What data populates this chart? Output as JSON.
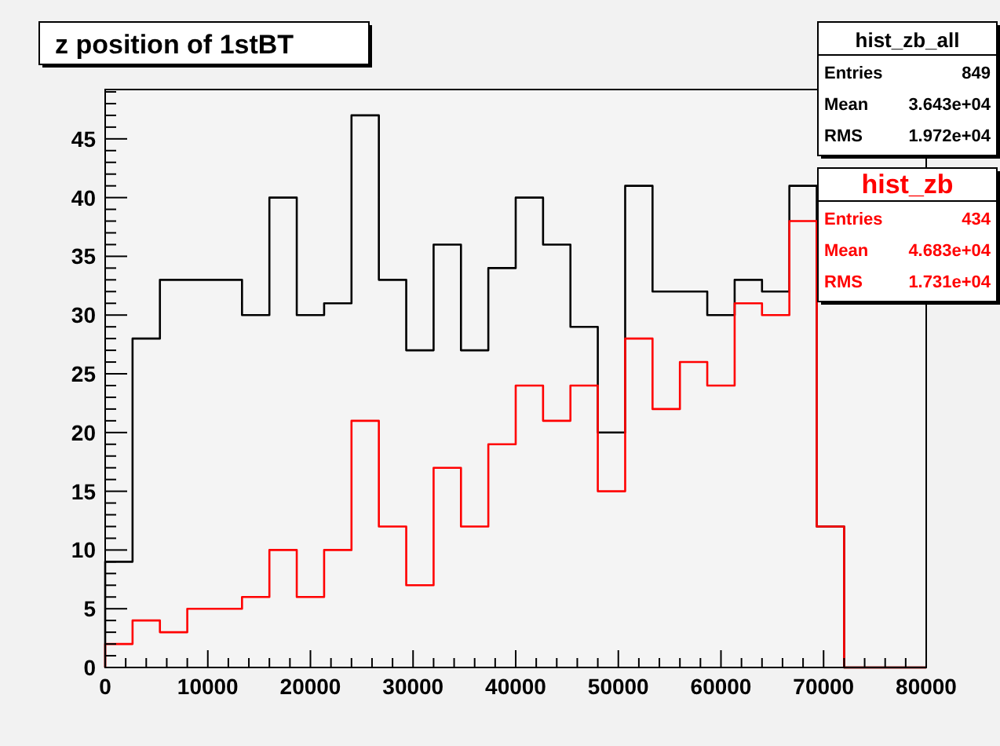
{
  "chart_data": {
    "type": "histogram",
    "title": "z position of 1stBT",
    "bins": [
      0,
      2666.67,
      5333.33,
      8000,
      10666.67,
      13333.33,
      16000,
      18666.67,
      21333.33,
      24000,
      26666.67,
      29333.33,
      32000,
      34666.67,
      37333.33,
      40000,
      42666.67,
      45333.33,
      48000,
      50666.67,
      53333.33,
      56000,
      58666.67,
      61333.33,
      64000,
      66666.67,
      69333.33,
      72000,
      74666.67,
      77333.33,
      80000
    ],
    "series": [
      {
        "name": "hist_zb_all",
        "color": "#000000",
        "values": [
          9,
          28,
          33,
          33,
          33,
          30,
          40,
          30,
          31,
          47,
          33,
          27,
          36,
          27,
          34,
          40,
          36,
          29,
          20,
          41,
          32,
          32,
          30,
          33,
          32,
          41,
          12,
          0,
          0,
          0
        ]
      },
      {
        "name": "hist_zb",
        "color": "#ff0000",
        "values": [
          2,
          4,
          3,
          5,
          5,
          6,
          10,
          6,
          10,
          21,
          12,
          7,
          17,
          12,
          19,
          24,
          21,
          24,
          15,
          28,
          22,
          26,
          24,
          31,
          30,
          38,
          12,
          0,
          0,
          0
        ]
      }
    ],
    "annotations": [
      "Entries 849",
      "Mean 3.643e+04",
      "RMS 1.972e+04",
      "Entries 434",
      "Mean 4.683e+04",
      "RMS 1.731e+04"
    ],
    "xlim": [
      0,
      80000
    ],
    "xticks": [
      0,
      {
        "value": 2000,
        "label": null
      },
      {
        "value": 4000,
        "label": null
      },
      {
        "value": 6000,
        "label": null
      },
      {
        "value": 8000,
        "label": null
      },
      10000,
      {
        "value": 12000,
        "label": null
      },
      {
        "value": 14000,
        "label": null
      },
      {
        "value": 16000,
        "label": null
      },
      {
        "value": 18000,
        "label": null
      },
      20000,
      {
        "value": 22000,
        "label": null
      },
      {
        "value": 24000,
        "label": null
      },
      {
        "value": 26000,
        "label": null
      },
      {
        "value": 28000,
        "label": null
      },
      30000,
      {
        "value": 32000,
        "label": null
      },
      {
        "value": 34000,
        "label": null
      },
      {
        "value": 36000,
        "label": null
      },
      {
        "value": 38000,
        "label": null
      },
      40000,
      {
        "value": 42000,
        "label": null
      },
      {
        "value": 44000,
        "label": null
      },
      {
        "value": 46000,
        "label": null
      },
      {
        "value": 48000,
        "label": null
      },
      50000,
      {
        "value": 52000,
        "label": null
      },
      {
        "value": 54000,
        "label": null
      },
      {
        "value": 56000,
        "label": null
      },
      {
        "value": 58000,
        "label": null
      },
      60000,
      {
        "value": 62000,
        "label": null
      },
      {
        "value": 64000,
        "label": null
      },
      {
        "value": 66000,
        "label": null
      },
      {
        "value": 68000,
        "label": null
      },
      70000,
      {
        "value": 72000,
        "label": null
      },
      {
        "value": 74000,
        "label": null
      },
      {
        "value": 76000,
        "label": null
      },
      {
        "value": 78000,
        "label": null
      },
      80000
    ],
    "ylim": [
      0,
      49.2
    ],
    "yticks": [
      0,
      {
        "value": 1,
        "label": null
      },
      {
        "value": 2,
        "label": null
      },
      {
        "value": 3,
        "label": null
      },
      {
        "value": 4,
        "label": null
      },
      5,
      {
        "value": 6,
        "label": null
      },
      {
        "value": 7,
        "label": null
      },
      {
        "value": 8,
        "label": null
      },
      {
        "value": 9,
        "label": null
      },
      10,
      {
        "value": 11,
        "label": null
      },
      {
        "value": 12,
        "label": null
      },
      {
        "value": 13,
        "label": null
      },
      {
        "value": 14,
        "label": null
      },
      15,
      {
        "value": 16,
        "label": null
      },
      {
        "value": 17,
        "label": null
      },
      {
        "value": 18,
        "label": null
      },
      {
        "value": 19,
        "label": null
      },
      20,
      {
        "value": 21,
        "label": null
      },
      {
        "value": 22,
        "label": null
      },
      {
        "value": 23,
        "label": null
      },
      {
        "value": 24,
        "label": null
      },
      25,
      {
        "value": 26,
        "label": null
      },
      {
        "value": 27,
        "label": null
      },
      {
        "value": 28,
        "label": null
      },
      {
        "value": 29,
        "label": null
      },
      30,
      {
        "value": 31,
        "label": null
      },
      {
        "value": 32,
        "label": null
      },
      {
        "value": 33,
        "label": null
      },
      {
        "value": 34,
        "label": null
      },
      35,
      {
        "value": 36,
        "label": null
      },
      {
        "value": 37,
        "label": null
      },
      {
        "value": 38,
        "label": null
      },
      {
        "value": 39,
        "label": null
      },
      40,
      {
        "value": 41,
        "label": null
      },
      {
        "value": 42,
        "label": null
      },
      {
        "value": 43,
        "label": null
      },
      {
        "value": 44,
        "label": null
      },
      45,
      {
        "value": 46,
        "label": null
      },
      {
        "value": 47,
        "label": null
      },
      {
        "value": 48,
        "label": null
      },
      {
        "value": 49,
        "label": null
      }
    ],
    "legend": "top right",
    "grid": false
  }
}
